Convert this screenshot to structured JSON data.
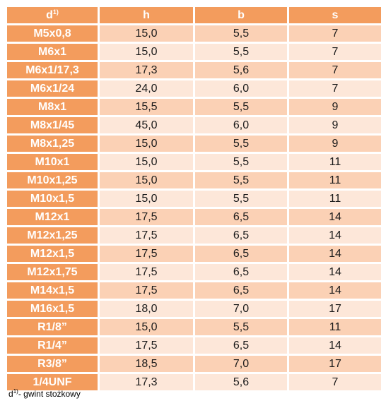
{
  "header": {
    "d": "d",
    "d_sup": "1)",
    "h": "h",
    "b": "b",
    "s": "s"
  },
  "rows": [
    {
      "d": "M5x0,8",
      "h": "15,0",
      "b": "5,5",
      "s": "7"
    },
    {
      "d": "M6x1",
      "h": "15,0",
      "b": "5,5",
      "s": "7"
    },
    {
      "d": "M6x1/17,3",
      "h": "17,3",
      "b": "5,6",
      "s": "7"
    },
    {
      "d": "M6x1/24",
      "h": "24,0",
      "b": "6,0",
      "s": "7"
    },
    {
      "d": "M8x1",
      "h": "15,5",
      "b": "5,5",
      "s": "9"
    },
    {
      "d": "M8x1/45",
      "h": "45,0",
      "b": "6,0",
      "s": "9"
    },
    {
      "d": "M8x1,25",
      "h": "15,0",
      "b": "5,5",
      "s": "9"
    },
    {
      "d": "M10x1",
      "h": "15,0",
      "b": "5,5",
      "s": "11"
    },
    {
      "d": "M10x1,25",
      "h": "15,0",
      "b": "5,5",
      "s": "11"
    },
    {
      "d": "M10x1,5",
      "h": "15,0",
      "b": "5,5",
      "s": "11"
    },
    {
      "d": "M12x1",
      "h": "17,5",
      "b": "6,5",
      "s": "14"
    },
    {
      "d": "M12x1,25",
      "h": "17,5",
      "b": "6,5",
      "s": "14"
    },
    {
      "d": "M12x1,5",
      "h": "17,5",
      "b": "6,5",
      "s": "14"
    },
    {
      "d": "M12x1,75",
      "h": "17,5",
      "b": "6,5",
      "s": "14"
    },
    {
      "d": "M14x1,5",
      "h": "17,5",
      "b": "6,5",
      "s": "14"
    },
    {
      "d": "M16x1,5",
      "h": "18,0",
      "b": "7,0",
      "s": "17"
    },
    {
      "d": "R1/8”",
      "h": "15,0",
      "b": "5,5",
      "s": "11"
    },
    {
      "d": "R1/4”",
      "h": "17,5",
      "b": "6,5",
      "s": "14"
    },
    {
      "d": "R3/8”",
      "h": "18,5",
      "b": "7,0",
      "s": "17"
    },
    {
      "d": "1/4UNF",
      "h": "17,3",
      "b": "5,6",
      "s": "7"
    }
  ],
  "footnote": {
    "d": "d",
    "sup": "1)",
    "text": "- gwint stożkowy"
  },
  "colors": {
    "header_bg": "#f39c5d",
    "row_odd_bg": "#fbd1b5",
    "row_even_bg": "#fde7d9",
    "header_text": "#ffffff"
  }
}
